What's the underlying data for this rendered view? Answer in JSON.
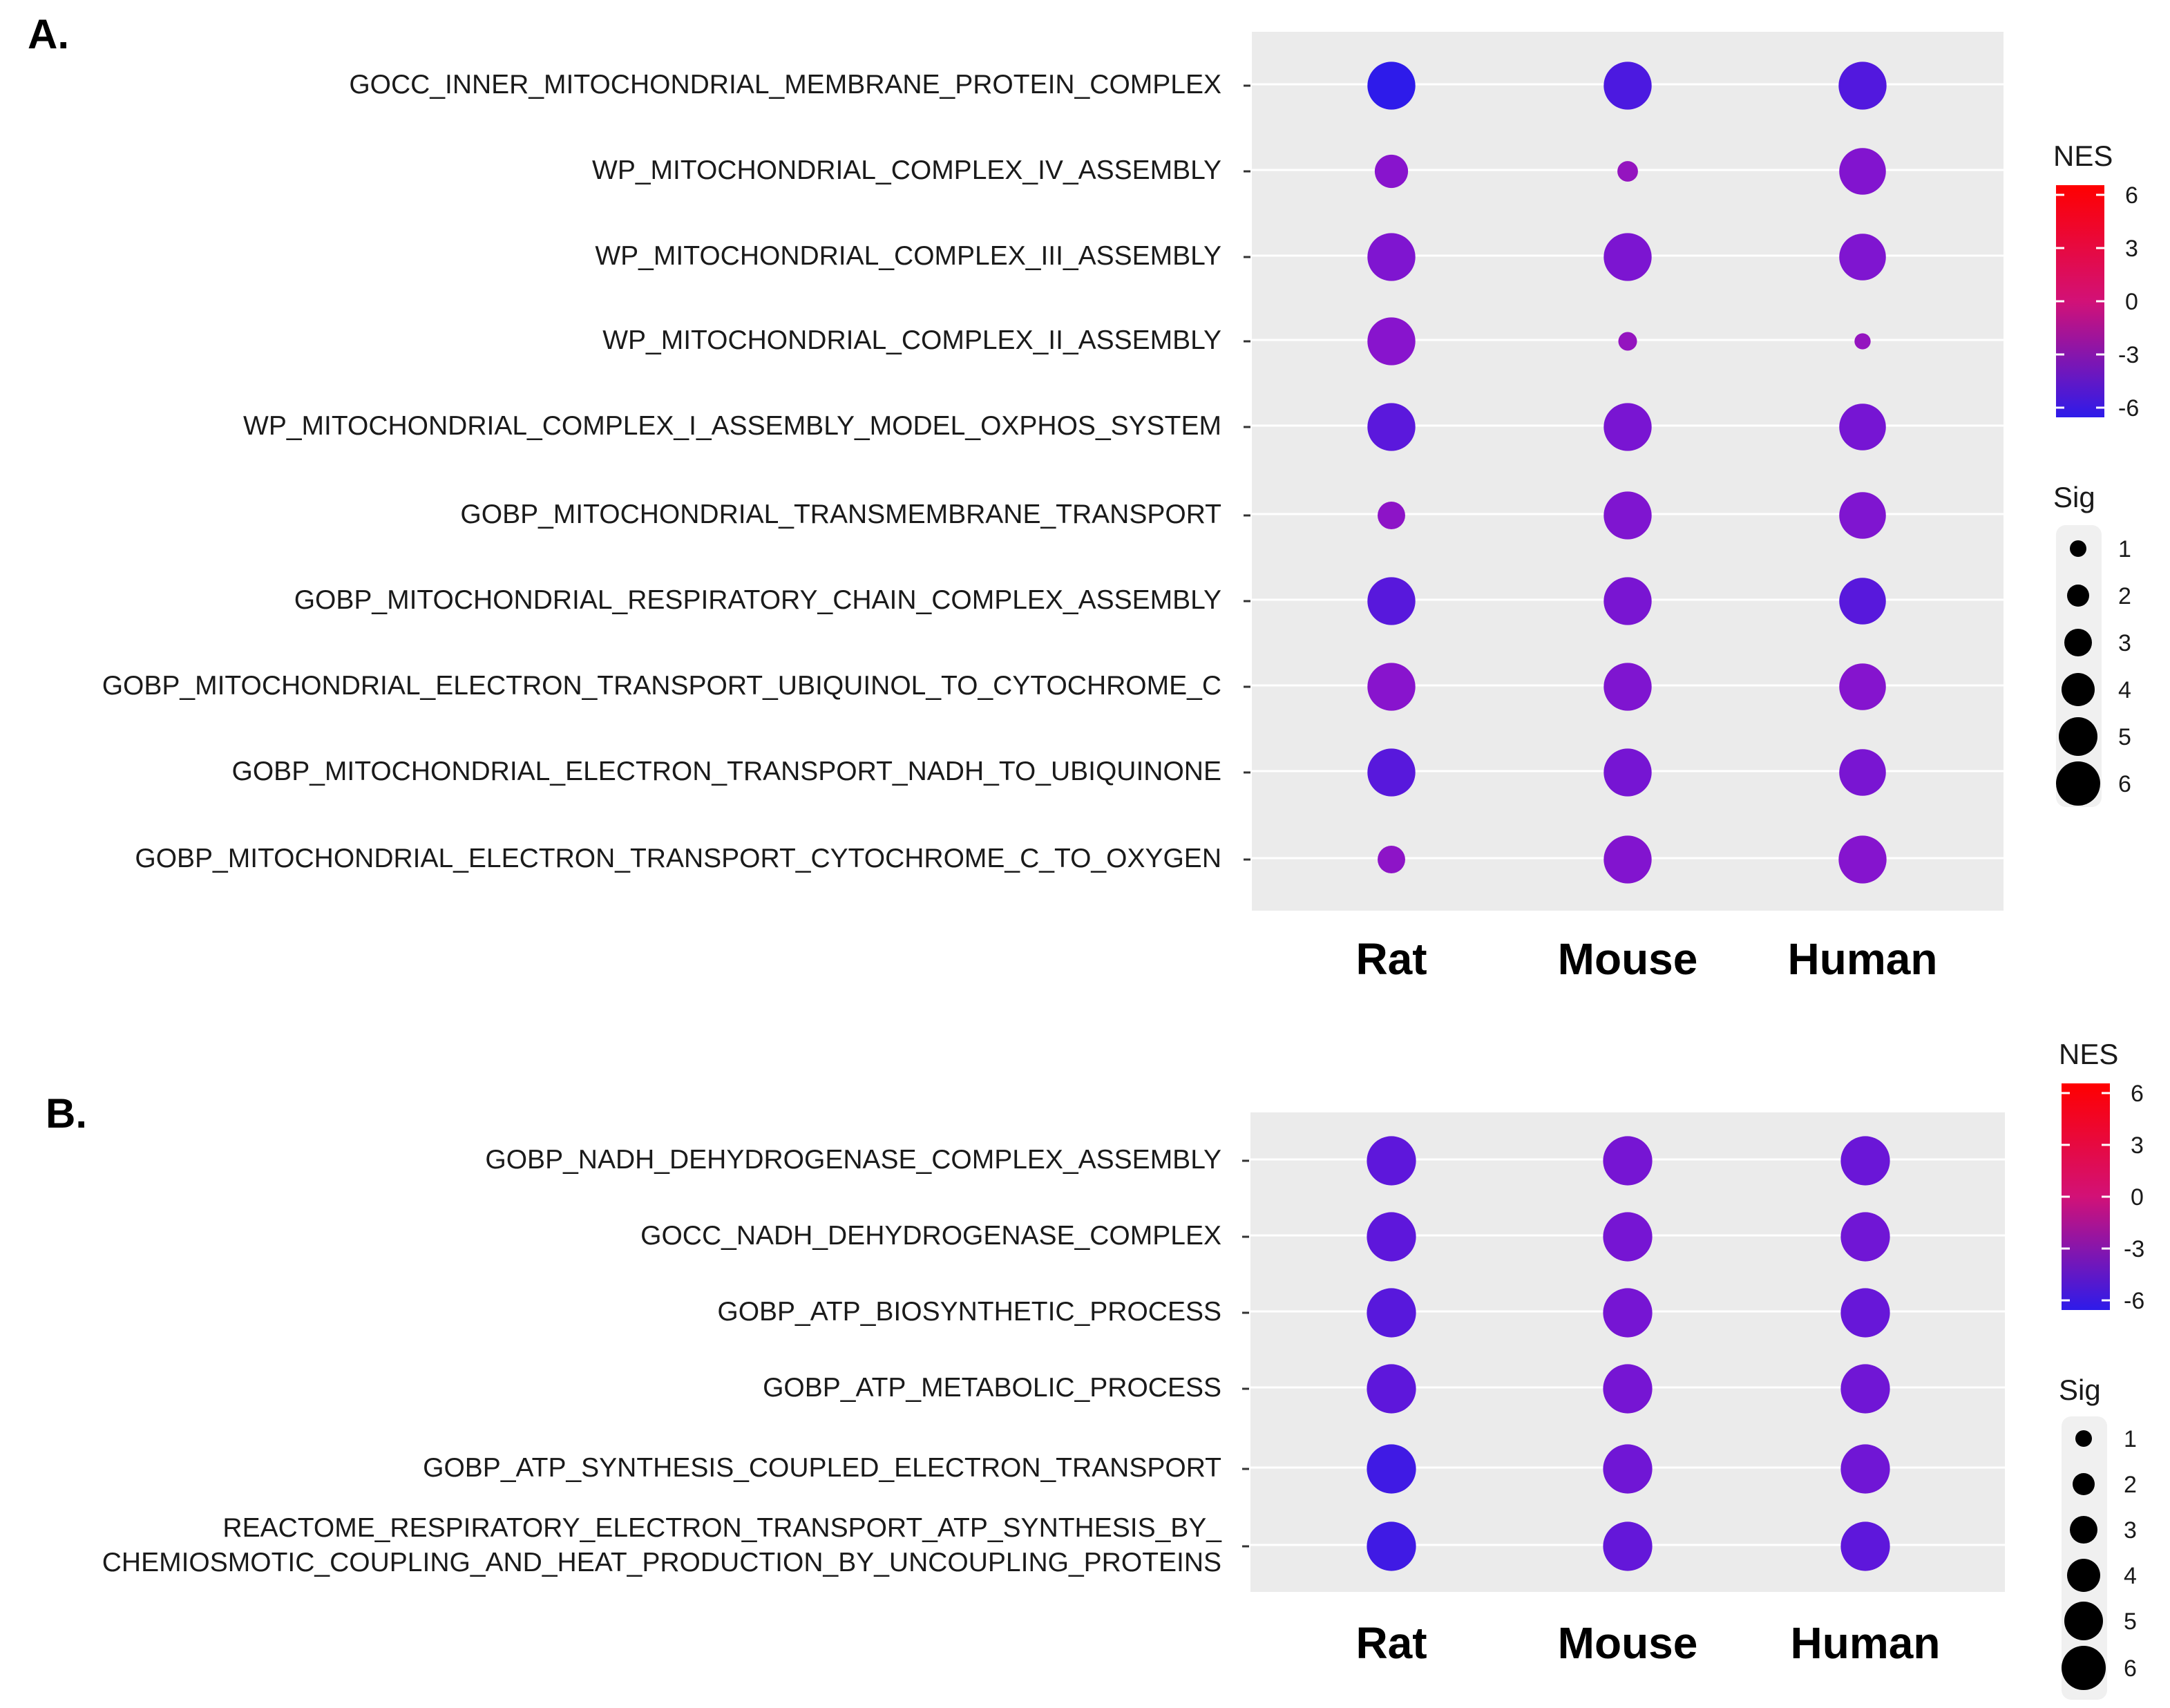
{
  "chart_data": [
    {
      "type": "scatter",
      "panel_label": "A.",
      "x": [
        "Rat",
        "Mouse",
        "Human"
      ],
      "terms": [
        "GOCC_INNER_MITOCHONDRIAL_MEMBRANE_PROTEIN_COMPLEX",
        "WP_MITOCHONDRIAL_COMPLEX_IV_ASSEMBLY",
        "WP_MITOCHONDRIAL_COMPLEX_III_ASSEMBLY",
        "WP_MITOCHONDRIAL_COMPLEX_II_ASSEMBLY",
        "WP_MITOCHONDRIAL_COMPLEX_I_ASSEMBLY_MODEL_OXPHOS_SYSTEM",
        "GOBP_MITOCHONDRIAL_TRANSMEMBRANE_TRANSPORT",
        "GOBP_MITOCHONDRIAL_RESPIRATORY_CHAIN_COMPLEX_ASSEMBLY",
        "GOBP_MITOCHONDRIAL_ELECTRON_TRANSPORT_UBIQUINOL_TO_CYTOCHROME_C",
        "GOBP_MITOCHONDRIAL_ELECTRON_TRANSPORT_NADH_TO_UBIQUINONE",
        "GOBP_MITOCHONDRIAL_ELECTRON_TRANSPORT_CYTOCHROME_C_TO_OXYGEN"
      ],
      "nes": [
        [
          -6.0,
          -5.0,
          -4.8
        ],
        [
          -3.0,
          -2.5,
          -3.2
        ],
        [
          -3.3,
          -3.4,
          -3.3
        ],
        [
          -3.0,
          -2.5,
          -2.5
        ],
        [
          -4.5,
          -3.5,
          -3.6
        ],
        [
          -2.8,
          -3.3,
          -3.3
        ],
        [
          -4.6,
          -3.5,
          -4.6
        ],
        [
          -3.0,
          -3.3,
          -3.1
        ],
        [
          -4.6,
          -3.6,
          -3.5
        ],
        [
          -2.8,
          -3.2,
          -3.1
        ]
      ],
      "sig": [
        [
          5.8,
          5.8,
          5.8
        ],
        [
          3.5,
          1.5,
          5.6
        ],
        [
          5.8,
          5.8,
          5.6
        ],
        [
          5.8,
          1.2,
          0.8
        ],
        [
          5.8,
          5.8,
          5.6
        ],
        [
          2.6,
          5.8,
          5.6
        ],
        [
          5.8,
          5.8,
          5.6
        ],
        [
          5.8,
          5.8,
          5.6
        ],
        [
          5.8,
          5.8,
          5.6
        ],
        [
          2.6,
          5.8,
          5.8
        ]
      ],
      "legend": {
        "nes_title": "NES",
        "nes_ticks": [
          "6",
          "3",
          "0",
          "-3",
          "-6"
        ],
        "sig_title": "Sig",
        "sig_ticks": [
          "1",
          "2",
          "3",
          "4",
          "5",
          "6"
        ]
      }
    },
    {
      "type": "scatter",
      "panel_label": "B.",
      "x": [
        "Rat",
        "Mouse",
        "Human"
      ],
      "terms": [
        "GOBP_NADH_DEHYDROGENASE_COMPLEX_ASSEMBLY",
        "GOCC_NADH_DEHYDROGENASE_COMPLEX",
        "GOBP_ATP_BIOSYNTHETIC_PROCESS",
        "GOBP_ATP_METABOLIC_PROCESS",
        "GOBP_ATP_SYNTHESIS_COUPLED_ELECTRON_TRANSPORT",
        "REACTOME_RESPIRATORY_ELECTRON_TRANSPORT_ATP_SYNTHESIS_BY_\nCHEMIOSMOTIC_COUPLING_AND_HEAT_PRODUCTION_BY_UNCOUPLING_PROTEINS"
      ],
      "nes": [
        [
          -4.4,
          -3.6,
          -4.0
        ],
        [
          -4.4,
          -3.6,
          -3.8
        ],
        [
          -4.6,
          -3.6,
          -4.1
        ],
        [
          -4.4,
          -3.6,
          -3.8
        ],
        [
          -5.4,
          -3.8,
          -3.8
        ],
        [
          -5.4,
          -4.2,
          -4.4
        ]
      ],
      "sig": [
        [
          6,
          6,
          6
        ],
        [
          6,
          6,
          6
        ],
        [
          6,
          6,
          6
        ],
        [
          6,
          6,
          6
        ],
        [
          6,
          6,
          6
        ],
        [
          6,
          6,
          6
        ]
      ],
      "legend": {
        "nes_title": "NES",
        "nes_ticks": [
          "6",
          "3",
          "0",
          "-3",
          "-6"
        ],
        "sig_title": "Sig",
        "sig_ticks": [
          "1",
          "2",
          "3",
          "4",
          "5",
          "6"
        ]
      }
    }
  ]
}
